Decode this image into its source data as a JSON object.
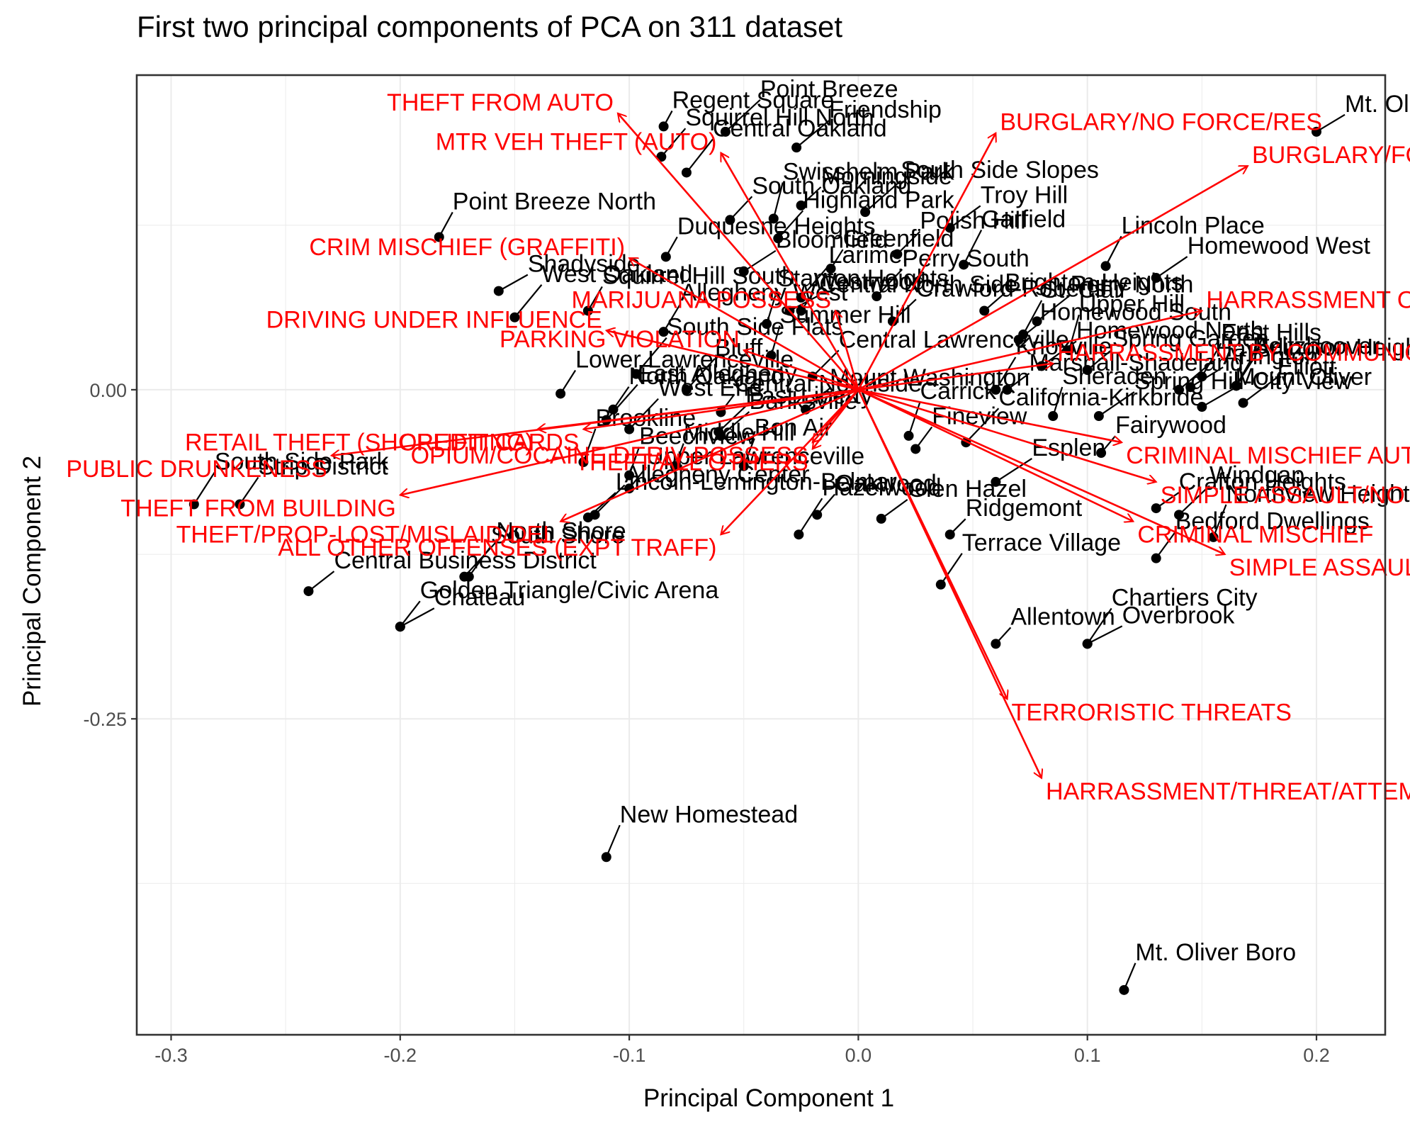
{
  "chart_data": {
    "type": "scatter",
    "title": "First two principal components of PCA on 311 dataset",
    "xlabel": "Principal Component 1",
    "ylabel": "Principal Component 2",
    "xlim": [
      -0.315,
      0.23
    ],
    "ylim": [
      -0.49,
      0.239
    ],
    "x_ticks": [
      -0.3,
      -0.2,
      -0.1,
      0.0,
      0.1,
      0.2
    ],
    "x_tick_labels": [
      "-0.3",
      "-0.2",
      "-0.1",
      "0.0",
      "0.1",
      "0.2"
    ],
    "y_ticks": [
      0.0,
      -0.25
    ],
    "y_tick_labels": [
      "0.00",
      "-0.25"
    ],
    "grid": true,
    "point_color": "#000000",
    "arrow_color": "#ff0000",
    "neighborhoods": [
      {
        "name": "Regent Square",
        "x": -0.085,
        "y": 0.2
      },
      {
        "name": "Point Breeze",
        "x": -0.058,
        "y": 0.196
      },
      {
        "name": "Friendship",
        "x": -0.027,
        "y": 0.184
      },
      {
        "name": "Troy Hill",
        "x": 0.04,
        "y": 0.123
      },
      {
        "name": "Mt. Oliver Neighborhood",
        "x": 0.2,
        "y": 0.196
      },
      {
        "name": "Central Oakland",
        "x": -0.075,
        "y": 0.165
      },
      {
        "name": "Squirrel Hill North",
        "x": -0.086,
        "y": 0.177
      },
      {
        "name": "South Oakland",
        "x": -0.056,
        "y": 0.129
      },
      {
        "name": "Morningside",
        "x": -0.025,
        "y": 0.14
      },
      {
        "name": "Garfield",
        "x": 0.046,
        "y": 0.095
      },
      {
        "name": "Lincoln Place",
        "x": 0.108,
        "y": 0.094
      },
      {
        "name": "Point Breeze North",
        "x": -0.183,
        "y": 0.116
      },
      {
        "name": "Duquesne Heights",
        "x": -0.084,
        "y": 0.101
      },
      {
        "name": "Swisshelm Park",
        "x": -0.037,
        "y": 0.13
      },
      {
        "name": "South Side Slopes",
        "x": 0.003,
        "y": 0.135
      },
      {
        "name": "Perry North",
        "x": 0.078,
        "y": 0.052
      },
      {
        "name": "Homewood West",
        "x": 0.13,
        "y": 0.085
      },
      {
        "name": "Shadyside",
        "x": -0.157,
        "y": 0.075
      },
      {
        "name": "West Oakland",
        "x": -0.15,
        "y": 0.055
      },
      {
        "name": "Highland Park",
        "x": -0.035,
        "y": 0.115
      },
      {
        "name": "Polish Hill",
        "x": 0.017,
        "y": 0.103
      },
      {
        "name": "Brighton Heights",
        "x": 0.055,
        "y": 0.06
      },
      {
        "name": "St. Clair",
        "x": 0.072,
        "y": 0.042
      },
      {
        "name": "Beltzhoover",
        "x": 0.165,
        "y": 0.003
      },
      {
        "name": "Squirrel Hill South",
        "x": -0.118,
        "y": 0.06
      },
      {
        "name": "Greenfield",
        "x": -0.012,
        "y": 0.092
      },
      {
        "name": "Upper Hill",
        "x": 0.092,
        "y": 0.03
      },
      {
        "name": "Hays",
        "x": 0.14,
        "y": 0.0
      },
      {
        "name": "Elliott",
        "x": 0.168,
        "y": -0.01
      },
      {
        "name": "Bloomfield",
        "x": -0.05,
        "y": 0.09
      },
      {
        "name": "Central North Side",
        "x": -0.03,
        "y": 0.06
      },
      {
        "name": "Larimer",
        "x": -0.025,
        "y": 0.07
      },
      {
        "name": "Perry South",
        "x": 0.008,
        "y": 0.071
      },
      {
        "name": "Crawford-Roberts",
        "x": 0.015,
        "y": 0.052
      },
      {
        "name": "Homewood South",
        "x": 0.07,
        "y": 0.038
      },
      {
        "name": "East Hills",
        "x": 0.15,
        "y": 0.01
      },
      {
        "name": "Allegheny West",
        "x": -0.085,
        "y": 0.044
      },
      {
        "name": "Lower Lawrenceville",
        "x": -0.13,
        "y": -0.003
      },
      {
        "name": "Westwood",
        "x": -0.025,
        "y": 0.06
      },
      {
        "name": "Stanton Heights",
        "x": -0.04,
        "y": 0.05
      },
      {
        "name": "Summer Hill",
        "x": -0.038,
        "y": 0.026
      },
      {
        "name": "Homewood North",
        "x": 0.08,
        "y": 0.018
      },
      {
        "name": "Arlington",
        "x": 0.145,
        "y": 0.002
      },
      {
        "name": "South Side Flats",
        "x": -0.097,
        "y": 0.012
      },
      {
        "name": "Bluff",
        "x": -0.075,
        "y": 0.0
      },
      {
        "name": "Central Lawrenceville",
        "x": -0.02,
        "y": 0.01
      },
      {
        "name": "Mount Washington",
        "x": -0.023,
        "y": -0.015
      },
      {
        "name": "Marshall-Shadeland",
        "x": 0.065,
        "y": 0.0
      },
      {
        "name": "Knoxville",
        "x": 0.06,
        "y": 0.0
      },
      {
        "name": "Arlington Heights",
        "x": 0.165,
        "y": 0.003
      },
      {
        "name": "North Oakland",
        "x": -0.107,
        "y": -0.015
      },
      {
        "name": "Central Northside",
        "x": -0.06,
        "y": -0.017
      },
      {
        "name": "Carrick",
        "x": 0.022,
        "y": -0.035
      },
      {
        "name": "Sheraden",
        "x": 0.085,
        "y": -0.02
      },
      {
        "name": "Spring Hill-City View",
        "x": 0.105,
        "y": -0.02
      },
      {
        "name": "Mount Oliver",
        "x": 0.15,
        "y": -0.013
      },
      {
        "name": "East Allegheny",
        "x": -0.11,
        "y": -0.023
      },
      {
        "name": "West End",
        "x": -0.1,
        "y": -0.03
      },
      {
        "name": "East Liberty",
        "x": -0.061,
        "y": -0.032
      },
      {
        "name": "Spring Garden",
        "x": 0.1,
        "y": 0.015
      },
      {
        "name": "Crafton Heights",
        "x": 0.13,
        "y": -0.09
      },
      {
        "name": "South Side Park",
        "x": -0.29,
        "y": -0.087
      },
      {
        "name": "Strip District",
        "x": -0.27,
        "y": -0.087
      },
      {
        "name": "Fineview",
        "x": 0.025,
        "y": -0.045
      },
      {
        "name": "Fairywood",
        "x": 0.106,
        "y": -0.048
      },
      {
        "name": "Brookline",
        "x": -0.12,
        "y": -0.055
      },
      {
        "name": "Beechview",
        "x": -0.1,
        "y": -0.065
      },
      {
        "name": "Esplen",
        "x": 0.06,
        "y": -0.07
      },
      {
        "name": "Chateau",
        "x": -0.2,
        "y": -0.18
      },
      {
        "name": "North Shore",
        "x": -0.172,
        "y": -0.142
      },
      {
        "name": "Allegheny Center",
        "x": -0.115,
        "y": -0.095
      },
      {
        "name": "Lincoln-Lemington-Belmar",
        "x": -0.118,
        "y": -0.097
      },
      {
        "name": "Central Business District",
        "x": -0.24,
        "y": -0.153
      },
      {
        "name": "Hazelwood",
        "x": -0.026,
        "y": -0.11
      },
      {
        "name": "Terrace Village",
        "x": 0.036,
        "y": -0.148
      },
      {
        "name": "Bedford Dwellings",
        "x": 0.13,
        "y": -0.128
      },
      {
        "name": "Upper Lawrenceville",
        "x": -0.1,
        "y": -0.075
      },
      {
        "name": "Allentown",
        "x": 0.06,
        "y": -0.193
      },
      {
        "name": "Northview Heights",
        "x": 0.155,
        "y": -0.112
      },
      {
        "name": "Bon Air",
        "x": -0.05,
        "y": -0.058
      },
      {
        "name": "Middle Hill",
        "x": -0.08,
        "y": -0.058
      },
      {
        "name": "Overbrook",
        "x": 0.1,
        "y": -0.193
      },
      {
        "name": "California-Kirkbride",
        "x": 0.047,
        "y": -0.04
      },
      {
        "name": "Windgap",
        "x": 0.14,
        "y": -0.095
      },
      {
        "name": "Banksville",
        "x": -0.06,
        "y": -0.035
      },
      {
        "name": "Glen Hazel",
        "x": 0.01,
        "y": -0.098
      },
      {
        "name": "Chartiers City",
        "x": 0.1,
        "y": -0.193
      },
      {
        "name": "South Shore",
        "x": -0.17,
        "y": -0.142
      },
      {
        "name": "Golden Triangle/Civic Arena",
        "x": -0.2,
        "y": -0.18
      },
      {
        "name": "Oakwood",
        "x": -0.018,
        "y": -0.095
      },
      {
        "name": "Ridgemont",
        "x": 0.04,
        "y": -0.11
      },
      {
        "name": "New Homestead",
        "x": -0.11,
        "y": -0.355
      },
      {
        "name": "Mt. Oliver Boro",
        "x": 0.116,
        "y": -0.456
      }
    ],
    "arrows": [
      {
        "name": "THEFT FROM AUTO",
        "x": -0.105,
        "y": 0.21
      },
      {
        "name": "MTR VEH THEFT (AUTO)",
        "x": -0.06,
        "y": 0.18
      },
      {
        "name": "BURGLARY/NO FORCE/RES",
        "x": 0.06,
        "y": 0.195
      },
      {
        "name": "BURGLARY/FORCE ENT/RES",
        "x": 0.17,
        "y": 0.17
      },
      {
        "name": "CRIM MISCHIEF (GRAFFITI)",
        "x": -0.1,
        "y": 0.1
      },
      {
        "name": "MARIJUANA POSSESS",
        "x": -0.01,
        "y": 0.06
      },
      {
        "name": "HARRASSMENT OTHER",
        "x": 0.15,
        "y": 0.06
      },
      {
        "name": "DRIVING UNDER INFLUENCE",
        "x": -0.11,
        "y": 0.045
      },
      {
        "name": "HARRASSMENT BY COMMUNICATION",
        "x": 0.085,
        "y": 0.02
      },
      {
        "name": "PARKING VIOLATION",
        "x": -0.05,
        "y": 0.03
      },
      {
        "name": "RETAIL THEFT (SHOPLIFTING)",
        "x": -0.14,
        "y": -0.03
      },
      {
        "name": "CRIMINAL MISCHIEF AUTO",
        "x": 0.115,
        "y": -0.04
      },
      {
        "name": "PUBLIC DRUNKENESS",
        "x": -0.23,
        "y": -0.05
      },
      {
        "name": "OPIUM/COCAINE DERIV-POSSESS",
        "x": -0.02,
        "y": -0.04
      },
      {
        "name": "CREDIT CARDS",
        "x": -0.12,
        "y": -0.03
      },
      {
        "name": "THEFT FROM BUILDING",
        "x": -0.2,
        "y": -0.08
      },
      {
        "name": "SIMPLE ASSAULT/NO INJURY",
        "x": 0.13,
        "y": -0.07
      },
      {
        "name": "THEFT/ALL OTHERS",
        "x": -0.02,
        "y": -0.045
      },
      {
        "name": "THEFT/PROP-LOST/MISLAID/DEL",
        "x": -0.13,
        "y": -0.1
      },
      {
        "name": "SIMPLE ASSAULT/INJURY",
        "x": 0.16,
        "y": -0.125
      },
      {
        "name": "ALL OTHER OFFENSES (EXPT TRAFF)",
        "x": -0.06,
        "y": -0.11
      },
      {
        "name": "CRIMINAL MISCHIEF",
        "x": 0.12,
        "y": -0.1
      },
      {
        "name": "TERRORISTIC THREATS",
        "x": 0.065,
        "y": -0.235
      },
      {
        "name": "HARRASSMENT/THREAT/ATTEMPT/PHY",
        "x": 0.08,
        "y": -0.295
      }
    ]
  }
}
